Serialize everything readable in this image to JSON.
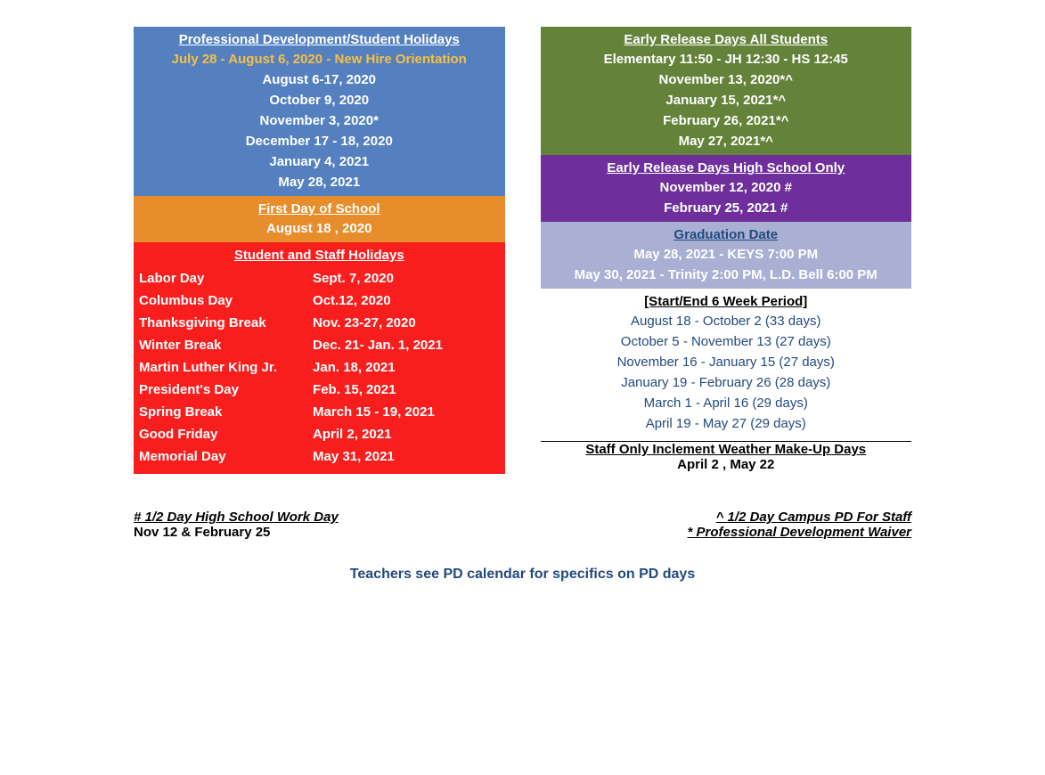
{
  "colors": {
    "pd_bg": "#5580c0",
    "firstday_bg": "#e88d2c",
    "holidays_bg": "#f91e1e",
    "early_all_bg": "#64823a",
    "early_hs_bg": "#6e2f9c",
    "grad_bg": "#a9b0d4",
    "highlight_text": "#f6c043",
    "body_text": "#234a7d"
  },
  "pd": {
    "header": "Professional Development/Student Holidays",
    "highlight": "July 28 - August 6, 2020 -  New Hire Orientation",
    "lines": [
      "August 6-17, 2020",
      "October 9, 2020",
      "November 3, 2020*",
      "December 17 - 18,  2020",
      "January 4,  2021",
      "May 28, 2021"
    ]
  },
  "firstday": {
    "header": "First Day of School",
    "date": "August 18 , 2020"
  },
  "holidays": {
    "header": "Student and Staff Holidays",
    "rows": [
      [
        "Labor Day",
        "Sept. 7, 2020"
      ],
      [
        "Columbus Day",
        "Oct.12, 2020"
      ],
      [
        "Thanksgiving Break",
        "Nov. 23-27, 2020"
      ],
      [
        "Winter Break",
        "Dec. 21- Jan. 1, 2021"
      ],
      [
        "Martin Luther King Jr.",
        "Jan. 18, 2021"
      ],
      [
        "President's Day",
        "Feb. 15, 2021"
      ],
      [
        "Spring Break",
        "March 15 - 19, 2021"
      ],
      [
        "Good Friday",
        "April 2, 2021"
      ],
      [
        "Memorial Day",
        "May 31, 2021"
      ]
    ]
  },
  "early_all": {
    "header": "Early Release Days All Students",
    "sub": "Elementary 11:50 - JH 12:30 - HS 12:45",
    "lines": [
      "November 13, 2020*^",
      "January 15, 2021*^",
      "February 26, 2021*^",
      "May 27, 2021*^"
    ]
  },
  "early_hs": {
    "header": "Early Release Days High School Only",
    "lines": [
      "November 12, 2020 #",
      "February 25, 2021 #"
    ]
  },
  "grad": {
    "header": "Graduation Date",
    "lines": [
      "May 28, 2021 - KEYS 7:00 PM",
      "May 30, 2021 - Trinity 2:00 PM, L.D. Bell 6:00 PM"
    ]
  },
  "periods": {
    "header": "[Start/End 6 Week Period]",
    "lines": [
      "August 18  - October 2  (33 days)",
      "October 5  - November 13  (27 days)",
      "November 16  - January 15 (27 days)",
      "January 19 - February 26 (28 days)",
      "March 1 - April 16 (29 days)",
      "April 19  - May 27 (29 days)"
    ]
  },
  "makeup": {
    "header": "Staff Only Inclement Weather Make-Up Days",
    "line": "April 2 , May 22"
  },
  "footer": {
    "left_head": "# 1/2 Day High School Work Day",
    "left_sub": "Nov 12 & February 25",
    "right_head1": "^ 1/2 Day Campus PD For Staff",
    "right_head2": "* Professional Development Waiver "
  },
  "bottom_note": "Teachers see PD calendar for specifics on PD days"
}
